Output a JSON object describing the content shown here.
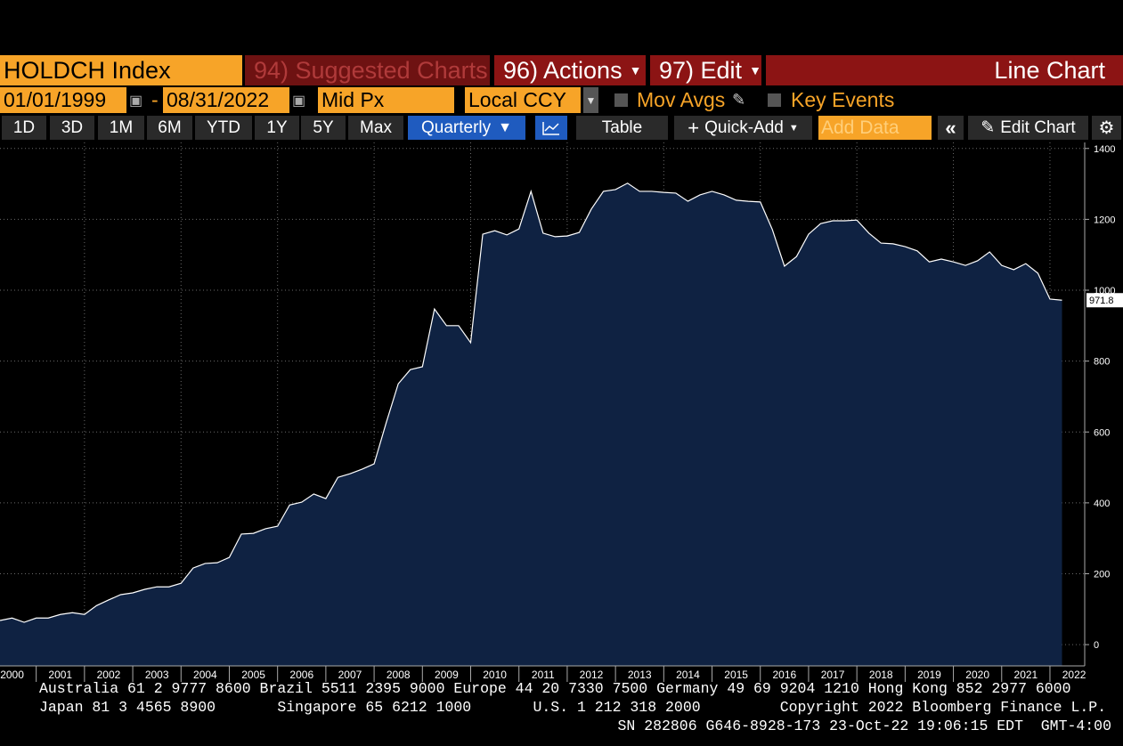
{
  "toolbar": {
    "security": "HOLDCH Index",
    "suggested": "94) Suggested Charts",
    "actions": "96) Actions",
    "edit": "97) Edit",
    "chart_type_label": "Line Chart",
    "start_date": "01/01/1999",
    "date_separator": "-",
    "end_date": "08/31/2022",
    "field": "Mid Px",
    "currency": "Local CCY",
    "mov_avgs": "Mov Avgs",
    "key_events": "Key Events",
    "ranges": [
      "1D",
      "3D",
      "1M",
      "6M",
      "YTD",
      "1Y",
      "5Y",
      "Max"
    ],
    "frequency": "Quarterly",
    "table": "Table",
    "quick_add": "Quick-Add",
    "add_data": "Add Data",
    "edit_chart": "Edit Chart"
  },
  "footer": [
    "Australia 61 2 9777 8600 Brazil 5511 2395 9000 Europe 44 20 7330 7500 Germany 49 69 9204 1210 Hong Kong 852 2977 6000",
    "Japan 81 3 4565 8900       Singapore 65 6212 1000       U.S. 1 212 318 2000         Copyright 2022 Bloomberg Finance L.P.",
    "SN 282806 G646-8928-173 23-Oct-22 19:06:15 EDT  GMT-4:00"
  ],
  "chart_data": {
    "type": "line",
    "x": [
      2000.25,
      2000.5,
      2000.75,
      2001,
      2001.25,
      2001.5,
      2001.75,
      2002,
      2002.25,
      2002.5,
      2002.75,
      2003,
      2003.25,
      2003.5,
      2003.75,
      2004,
      2004.25,
      2004.5,
      2004.75,
      2005,
      2005.25,
      2005.5,
      2005.75,
      2006,
      2006.25,
      2006.5,
      2006.75,
      2007,
      2007.25,
      2007.5,
      2007.75,
      2008,
      2008.25,
      2008.5,
      2008.75,
      2009,
      2009.25,
      2009.5,
      2009.75,
      2010,
      2010.25,
      2010.5,
      2010.75,
      2011,
      2011.25,
      2011.5,
      2011.75,
      2012,
      2012.25,
      2012.5,
      2012.75,
      2013,
      2013.25,
      2013.5,
      2013.75,
      2014,
      2014.25,
      2014.5,
      2014.75,
      2015,
      2015.25,
      2015.5,
      2015.75,
      2016,
      2016.25,
      2016.5,
      2016.75,
      2017,
      2017.25,
      2017.5,
      2017.75,
      2018,
      2018.25,
      2018.5,
      2018.75,
      2019,
      2019.25,
      2019.5,
      2019.75,
      2020,
      2020.25,
      2020.5,
      2020.75,
      2021,
      2021.25,
      2021.5,
      2021.75,
      2022,
      2022.25
    ],
    "series": [
      {
        "color": "#ffffff",
        "fill": "#0f2242",
        "values": [
          68,
          75,
          63,
          75,
          75,
          85,
          90,
          85,
          110,
          126,
          141,
          146,
          156,
          163,
          163,
          173,
          216,
          229,
          231,
          246,
          312,
          314,
          327,
          334,
          394,
          402,
          425,
          412,
          472,
          482,
          495,
          510,
          626,
          736,
          776,
          784,
          947,
          900,
          900,
          852,
          1158,
          1168,
          1156,
          1173,
          1279,
          1161,
          1151,
          1153,
          1163,
          1229,
          1279,
          1284,
          1302,
          1279,
          1279,
          1276,
          1274,
          1251,
          1269,
          1279,
          1269,
          1254,
          1251,
          1249,
          1171,
          1068,
          1095,
          1158,
          1188,
          1196,
          1196,
          1198,
          1161,
          1133,
          1131,
          1123,
          1111,
          1080,
          1088,
          1080,
          1070,
          1083,
          1108,
          1070,
          1058,
          1075,
          1048,
          975,
          971.8
        ]
      }
    ],
    "xlim": [
      2000.25,
      2022.72
    ],
    "xticks": [
      {
        "value": 2000.5,
        "label": "2000"
      },
      {
        "value": 2001.5,
        "label": "2001"
      },
      {
        "value": 2002.5,
        "label": "2002"
      },
      {
        "value": 2003.5,
        "label": "2003"
      },
      {
        "value": 2004.5,
        "label": "2004"
      },
      {
        "value": 2005.5,
        "label": "2005"
      },
      {
        "value": 2006.5,
        "label": "2006"
      },
      {
        "value": 2007.5,
        "label": "2007"
      },
      {
        "value": 2008.5,
        "label": "2008"
      },
      {
        "value": 2009.5,
        "label": "2009"
      },
      {
        "value": 2010.5,
        "label": "2010"
      },
      {
        "value": 2011.5,
        "label": "2011"
      },
      {
        "value": 2012.5,
        "label": "2012"
      },
      {
        "value": 2013.5,
        "label": "2013"
      },
      {
        "value": 2014.5,
        "label": "2014"
      },
      {
        "value": 2015.5,
        "label": "2015"
      },
      {
        "value": 2016.5,
        "label": "2016"
      },
      {
        "value": 2017.5,
        "label": "2017"
      },
      {
        "value": 2018.5,
        "label": "2018"
      },
      {
        "value": 2019.5,
        "label": "2019"
      },
      {
        "value": 2020.5,
        "label": "2020"
      },
      {
        "value": 2021.5,
        "label": "2021"
      },
      {
        "value": 2022.5,
        "label": "2022"
      }
    ],
    "ylim": [
      -60,
      1417
    ],
    "yticks": [
      0,
      200,
      400,
      600,
      800,
      1000,
      1200,
      1400
    ],
    "grid": true
  }
}
